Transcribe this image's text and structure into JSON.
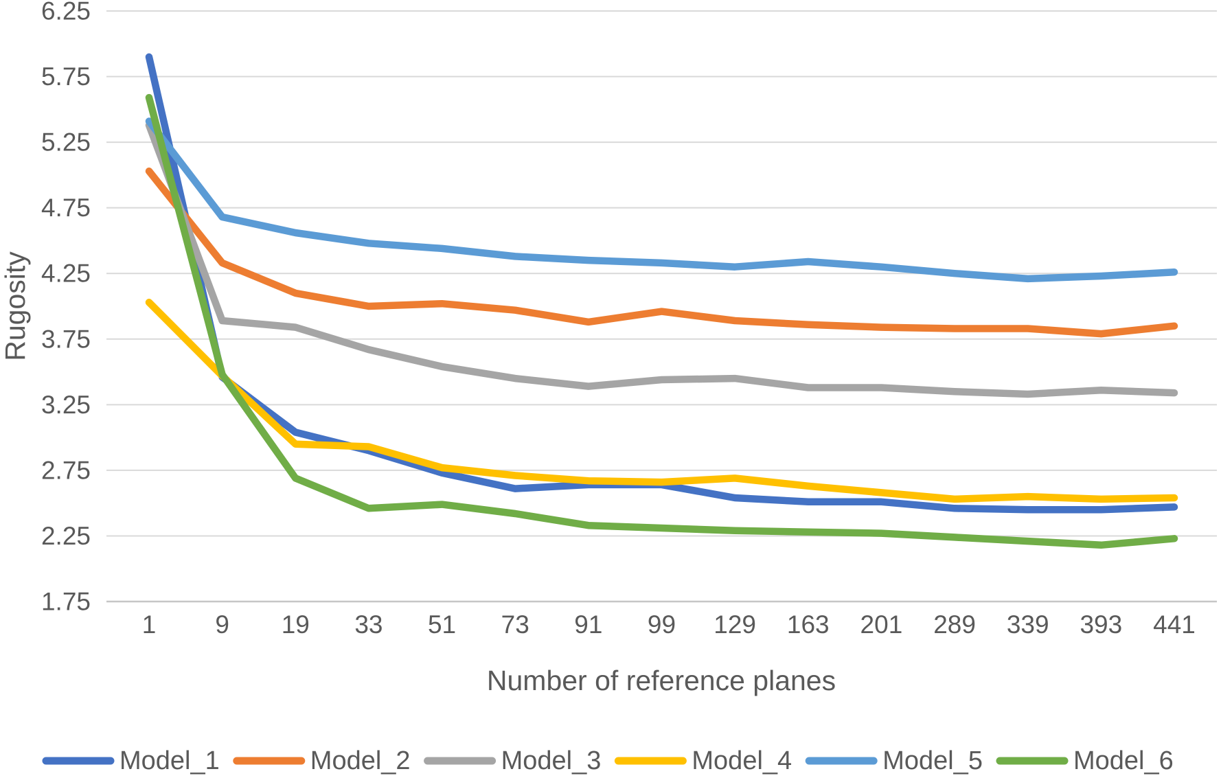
{
  "chart_data": {
    "type": "line",
    "title": "",
    "xlabel": "Number of reference planes",
    "ylabel": "Rugosity",
    "categories": [
      1,
      9,
      19,
      33,
      51,
      73,
      91,
      99,
      129,
      163,
      201,
      289,
      339,
      393,
      441
    ],
    "ylim": [
      1.75,
      6.25
    ],
    "yticks": [
      6.25,
      5.75,
      5.25,
      4.75,
      4.25,
      3.75,
      3.25,
      2.75,
      2.25,
      1.75
    ],
    "grid": true,
    "legend_position": "bottom",
    "series": [
      {
        "name": "Model_1",
        "color": "#4472C4",
        "values": [
          5.9,
          3.46,
          3.04,
          2.9,
          2.73,
          2.61,
          2.64,
          2.64,
          2.54,
          2.51,
          2.51,
          2.46,
          2.45,
          2.45,
          2.47
        ]
      },
      {
        "name": "Model_2",
        "color": "#ED7D31",
        "values": [
          5.03,
          4.33,
          4.1,
          4.0,
          4.02,
          3.97,
          3.88,
          3.96,
          3.89,
          3.86,
          3.84,
          3.83,
          3.83,
          3.79,
          3.85
        ]
      },
      {
        "name": "Model_3",
        "color": "#A5A5A5",
        "values": [
          5.38,
          3.89,
          3.84,
          3.67,
          3.54,
          3.45,
          3.39,
          3.44,
          3.45,
          3.38,
          3.38,
          3.35,
          3.33,
          3.36,
          3.34
        ]
      },
      {
        "name": "Model_4",
        "color": "#FFC000",
        "values": [
          4.03,
          3.47,
          2.95,
          2.93,
          2.77,
          2.71,
          2.67,
          2.66,
          2.69,
          2.63,
          2.58,
          2.53,
          2.55,
          2.53,
          2.54
        ]
      },
      {
        "name": "Model_5",
        "color": "#5B9BD5",
        "values": [
          5.41,
          4.68,
          4.56,
          4.48,
          4.44,
          4.38,
          4.35,
          4.33,
          4.3,
          4.34,
          4.3,
          4.25,
          4.21,
          4.23,
          4.26
        ]
      },
      {
        "name": "Model_6",
        "color": "#70AD47",
        "values": [
          5.59,
          3.48,
          2.69,
          2.46,
          2.49,
          2.42,
          2.33,
          2.31,
          2.29,
          2.28,
          2.27,
          2.24,
          2.21,
          2.18,
          2.23
        ]
      }
    ]
  },
  "styles": {
    "text_color": "#595959",
    "grid_color": "#D9D9D9",
    "axis_line_color": "#C6C6C6",
    "background": "#FFFFFF"
  }
}
